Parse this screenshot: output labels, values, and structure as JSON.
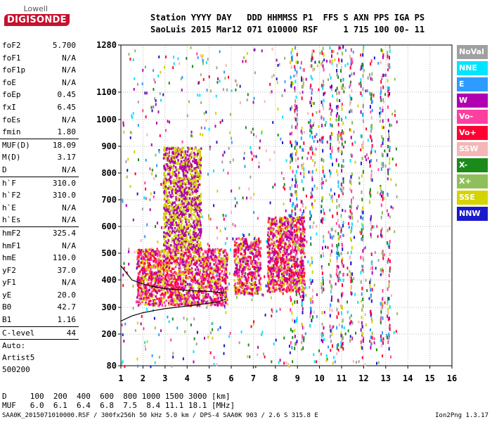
{
  "logo": {
    "line1": "Lowell",
    "line2": "DIGISONDE"
  },
  "header": {
    "line1": "Station YYYY DAY   DDD HHMMSS P1  FFS S AXN PPS IGA PS",
    "line2": "SaoLuis 2015 Mar12 071 010000 RSF     1 715 100 00- 11"
  },
  "params": {
    "group1": [
      {
        "name": "foF2",
        "value": "5.700"
      },
      {
        "name": "foF1",
        "value": "N/A"
      },
      {
        "name": "foF1p",
        "value": "N/A"
      },
      {
        "name": "foE",
        "value": "N/A"
      },
      {
        "name": "foEp",
        "value": "0.45"
      },
      {
        "name": "fxI",
        "value": "6.45"
      },
      {
        "name": "foEs",
        "value": "N/A"
      },
      {
        "name": "fmin",
        "value": "1.80"
      }
    ],
    "group2": [
      {
        "name": "MUF(D)",
        "value": "18.09"
      },
      {
        "name": "M(D)",
        "value": "3.17"
      },
      {
        "name": "D",
        "value": "N/A"
      }
    ],
    "group3": [
      {
        "name": "h`F",
        "value": "310.0"
      },
      {
        "name": "h`F2",
        "value": "310.0"
      },
      {
        "name": "h`E",
        "value": "N/A"
      },
      {
        "name": "h`Es",
        "value": "N/A"
      }
    ],
    "group4": [
      {
        "name": "hmF2",
        "value": "325.4"
      },
      {
        "name": "hmF1",
        "value": "N/A"
      },
      {
        "name": "hmE",
        "value": "110.0"
      },
      {
        "name": "yF2",
        "value": "37.0"
      },
      {
        "name": "yF1",
        "value": "N/A"
      },
      {
        "name": "yE",
        "value": "20.0"
      },
      {
        "name": "B0",
        "value": "42.7"
      },
      {
        "name": "B1",
        "value": "1.16"
      }
    ],
    "clevel": {
      "name": "C-level",
      "value": "44"
    },
    "auto": [
      "Auto:",
      "Artist5",
      "500200"
    ]
  },
  "legend": [
    {
      "label": "NoVal",
      "color": "#a0a0a0"
    },
    {
      "label": "NNE",
      "color": "#00e5ff"
    },
    {
      "label": "E",
      "color": "#2e9bff"
    },
    {
      "label": "W",
      "color": "#b000b0"
    },
    {
      "label": "Vo-",
      "color": "#ff3fa0"
    },
    {
      "label": "Vo+",
      "color": "#ff0033"
    },
    {
      "label": "SSW",
      "color": "#f4b6b6"
    },
    {
      "label": "X-",
      "color": "#1a8a1a"
    },
    {
      "label": "X+",
      "color": "#8fbf5a"
    },
    {
      "label": "SSE",
      "color": "#d4d400"
    },
    {
      "label": "NNW",
      "color": "#1a1acc"
    }
  ],
  "md_table": {
    "line1": "D     100  200  400  600  800 1000 1500 3000 [km]",
    "line2": "MUF   6.0  6.1  6.4  6.8  7.5  8.4 11.1 18.1 [MHz]"
  },
  "footer": {
    "text": "SAA0K_2015071010000.RSF / 300fx256h 50 kHz 5.0 km / DPS-4 SAA0K 903 / 2.6 S 315.8 E",
    "version": "Ion2Png 1.3.17"
  },
  "chart_data": {
    "type": "scatter",
    "x_axis": {
      "ticks": [
        1,
        2,
        3,
        4,
        5,
        6,
        7,
        8,
        9,
        10,
        11,
        12,
        13,
        14,
        15,
        16
      ],
      "range": [
        1,
        16
      ]
    },
    "y_axis": {
      "ticks": [
        80,
        200,
        300,
        400,
        500,
        600,
        700,
        800,
        900,
        1000,
        1100,
        1280
      ],
      "range": [
        80,
        1280
      ]
    },
    "grid": true,
    "legend_position": "right",
    "traces": [
      {
        "name": "O-trace",
        "color": "#000000",
        "x": [
          0.98,
          1.5,
          2.0,
          2.5,
          3.0,
          3.5,
          4.0,
          4.5,
          5.0,
          5.4,
          5.7
        ],
        "y": [
          455,
          400,
          385,
          375,
          368,
          365,
          362,
          360,
          358,
          355,
          352
        ]
      },
      {
        "name": "profile",
        "color": "#000000",
        "x": [
          0.98,
          1.5,
          2.0,
          2.5,
          3.0,
          3.5,
          4.0,
          4.5,
          5.0,
          5.4,
          5.75
        ],
        "y": [
          248,
          268,
          280,
          288,
          295,
          300,
          305,
          310,
          315,
          320,
          330
        ]
      }
    ],
    "echo_regions": [
      {
        "x": [
          1.7,
          5.8
        ],
        "y": [
          310,
          520
        ],
        "colors": [
          "#ff0033",
          "#b000b0",
          "#ff3fa0",
          "#d4d400"
        ]
      },
      {
        "x": [
          2.9,
          4.6
        ],
        "y": [
          520,
          900
        ],
        "colors": [
          "#d4d400",
          "#b000b0"
        ]
      },
      {
        "x": [
          6.1,
          7.3
        ],
        "y": [
          350,
          560
        ],
        "colors": [
          "#ff0033",
          "#b000b0",
          "#ff3fa0",
          "#d4d400"
        ]
      },
      {
        "x": [
          7.6,
          9.3
        ],
        "y": [
          360,
          640
        ],
        "colors": [
          "#ff0033",
          "#b000b0",
          "#ff3fa0",
          "#d4d400"
        ]
      }
    ]
  }
}
